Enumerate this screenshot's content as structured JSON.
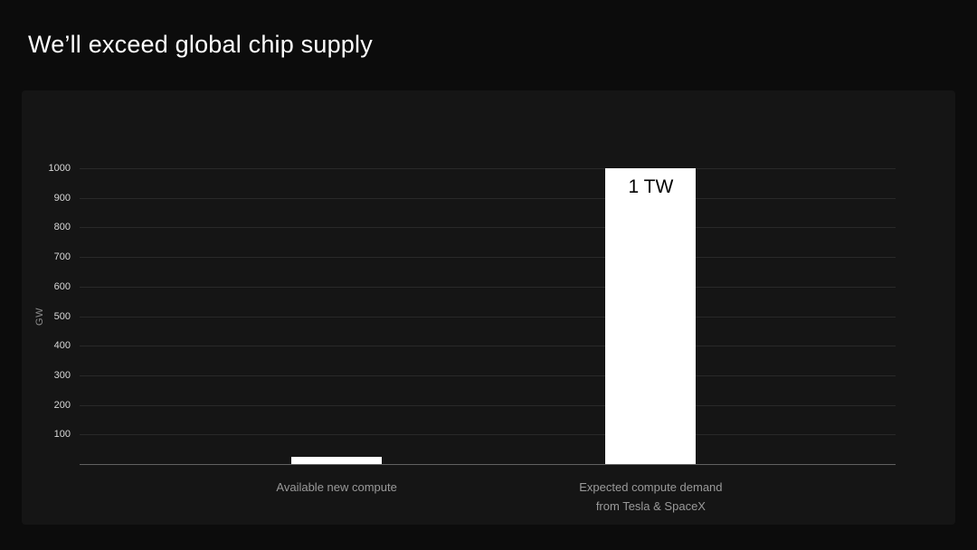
{
  "page": {
    "title": "We’ll exceed global chip supply"
  },
  "chart_data": {
    "type": "bar",
    "title": "We’ll exceed global chip supply",
    "categories": [
      "Available new compute",
      "Expected compute demand\nfrom Tesla & SpaceX"
    ],
    "values": [
      25,
      1000
    ],
    "bar_labels": [
      "",
      "1 TW"
    ],
    "xlabel": "",
    "ylabel": "GW",
    "ylim": [
      0,
      1000
    ],
    "yticks": [
      100,
      200,
      300,
      400,
      500,
      600,
      700,
      800,
      900,
      1000
    ],
    "grid": true,
    "legend": false,
    "colors": {
      "bar": "#ffffff",
      "bar_label": "#000000",
      "background": "#0c0c0c",
      "panel": "#151515",
      "gridline": "#292929",
      "axis_line": "#616161",
      "tick_label": "#d9d9d9",
      "category_label": "#9a9a9a",
      "title": "#ffffff"
    }
  }
}
